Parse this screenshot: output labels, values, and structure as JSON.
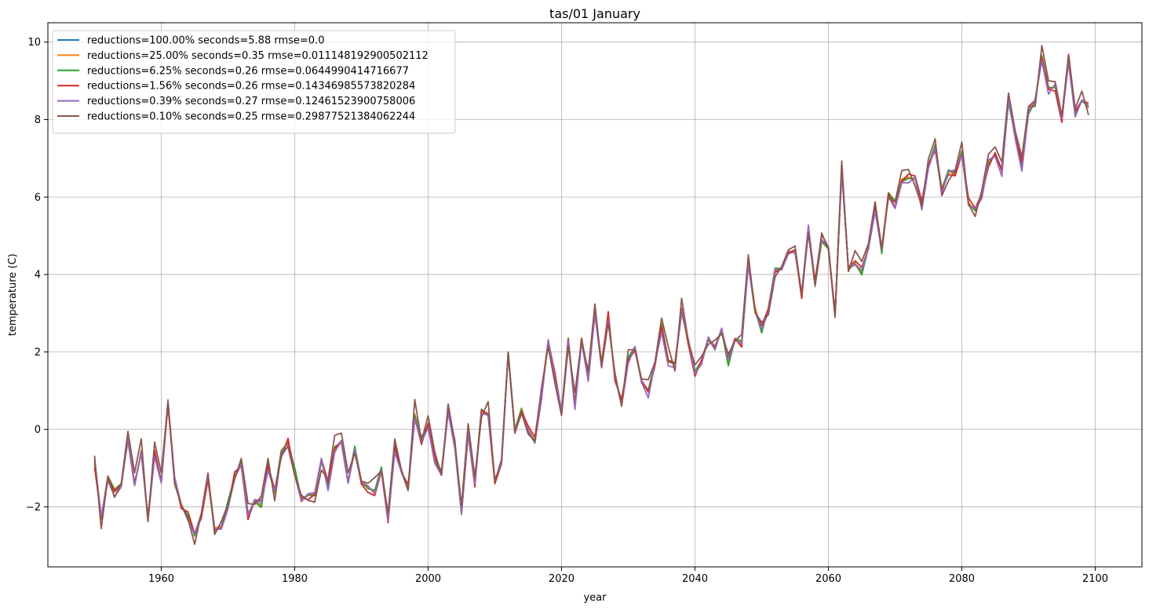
{
  "chart_data": {
    "type": "line",
    "title": "tas/01 January",
    "xlabel": "year",
    "ylabel": "temperature (C)",
    "xlim": [
      1943,
      2107
    ],
    "ylim": [
      -3.55,
      10.5
    ],
    "xticks": [
      1960,
      1980,
      2000,
      2020,
      2040,
      2060,
      2080,
      2100
    ],
    "yticks": [
      -2,
      0,
      2,
      4,
      6,
      8,
      10
    ],
    "ytick_labels": [
      "−2",
      "0",
      "2",
      "4",
      "6",
      "8",
      "10"
    ],
    "grid": true,
    "legend_position": "upper-left",
    "x": [
      1950,
      1951,
      1952,
      1953,
      1954,
      1955,
      1956,
      1957,
      1958,
      1959,
      1960,
      1961,
      1962,
      1963,
      1964,
      1965,
      1966,
      1967,
      1968,
      1969,
      1970,
      1971,
      1972,
      1973,
      1974,
      1975,
      1976,
      1977,
      1978,
      1979,
      1980,
      1981,
      1982,
      1983,
      1984,
      1985,
      1986,
      1987,
      1988,
      1989,
      1990,
      1991,
      1992,
      1993,
      1994,
      1995,
      1996,
      1997,
      1998,
      1999,
      2000,
      2001,
      2002,
      2003,
      2004,
      2005,
      2006,
      2007,
      2008,
      2009,
      2010,
      2011,
      2012,
      2013,
      2014,
      2015,
      2016,
      2017,
      2018,
      2019,
      2020,
      2021,
      2022,
      2023,
      2024,
      2025,
      2026,
      2027,
      2028,
      2029,
      2030,
      2031,
      2032,
      2033,
      2034,
      2035,
      2036,
      2037,
      2038,
      2039,
      2040,
      2041,
      2042,
      2043,
      2044,
      2045,
      2046,
      2047,
      2048,
      2049,
      2050,
      2051,
      2052,
      2053,
      2054,
      2055,
      2056,
      2057,
      2058,
      2059,
      2060,
      2061,
      2062,
      2063,
      2064,
      2065,
      2066,
      2067,
      2068,
      2069,
      2070,
      2071,
      2072,
      2073,
      2074,
      2075,
      2076,
      2077,
      2078,
      2079,
      2080,
      2081,
      2082,
      2083,
      2084,
      2085,
      2086,
      2087,
      2088,
      2089,
      2090,
      2091,
      2092,
      2093,
      2094,
      2095,
      2096,
      2097,
      2098,
      2099
    ],
    "base": [
      -0.85,
      -2.3,
      -1.2,
      -1.55,
      -1.4,
      -0.3,
      -1.45,
      -0.55,
      -2.3,
      -0.6,
      -1.35,
      0.7,
      -1.3,
      -2.0,
      -2.25,
      -2.75,
      -2.2,
      -1.2,
      -2.55,
      -2.5,
      -1.9,
      -1.2,
      -0.85,
      -2.2,
      -1.85,
      -1.95,
      -0.95,
      -1.65,
      -0.6,
      -0.3,
      -1.05,
      -1.85,
      -1.7,
      -1.65,
      -0.8,
      -1.45,
      -0.45,
      -0.35,
      -1.35,
      -0.45,
      -1.4,
      -1.5,
      -1.6,
      -1.0,
      -2.3,
      -0.45,
      -1.05,
      -1.55,
      0.4,
      -0.25,
      0.05,
      -0.8,
      -1.15,
      0.55,
      -0.4,
      -2.2,
      -0.1,
      -1.35,
      0.5,
      0.35,
      -1.35,
      -0.8,
      2.0,
      0.0,
      0.55,
      0.0,
      -0.3,
      0.9,
      2.3,
      1.4,
      0.45,
      2.35,
      0.65,
      2.35,
      1.35,
      3.0,
      1.75,
      2.9,
      1.35,
      0.7,
      1.85,
      2.1,
      1.2,
      1.0,
      1.7,
      2.7,
      1.75,
      1.7,
      3.0,
      2.3,
      1.45,
      1.7,
      2.35,
      2.05,
      2.6,
      1.7,
      2.3,
      2.25,
      4.3,
      3.15,
      2.55,
      3.1,
      4.1,
      4.15,
      4.6,
      4.55,
      3.5,
      5.2,
      3.75,
      4.9,
      4.7,
      2.95,
      6.75,
      4.15,
      4.25,
      4.05,
      4.75,
      5.8,
      4.6,
      6.1,
      5.85,
      6.45,
      6.5,
      6.45,
      5.8,
      6.8,
      7.3,
      6.15,
      6.65,
      6.6,
      7.2,
      5.85,
      5.65,
      6.05,
      6.9,
      7.1,
      6.7,
      8.5,
      7.6,
      6.8,
      8.2,
      8.5,
      9.65,
      8.8,
      8.85,
      8.05,
      9.65,
      8.2,
      8.5,
      8.3
    ],
    "series": [
      {
        "name": "reductions=100.00% seconds=5.88 rmse=0.0",
        "color": "#1f77b4",
        "noise_scale": 0.0,
        "seed": 1
      },
      {
        "name": "reductions=25.00% seconds=0.35 rmse=0.011148192900502112",
        "color": "#ff7f0e",
        "noise_scale": 0.02,
        "seed": 2
      },
      {
        "name": "reductions=6.25% seconds=0.26 rmse=0.0644990414716677",
        "color": "#2ca02c",
        "noise_scale": 0.07,
        "seed": 3
      },
      {
        "name": "reductions=1.56% seconds=0.26 rmse=0.14346985573820284",
        "color": "#d62728",
        "noise_scale": 0.14,
        "seed": 4
      },
      {
        "name": "reductions=0.39% seconds=0.27 rmse=0.12461523900758006",
        "color": "#9467bd",
        "noise_scale": 0.12,
        "seed": 5
      },
      {
        "name": "reductions=0.10% seconds=0.25 rmse=0.29877521384062244",
        "color": "#8c564b",
        "noise_scale": 0.28,
        "seed": 6
      }
    ]
  }
}
